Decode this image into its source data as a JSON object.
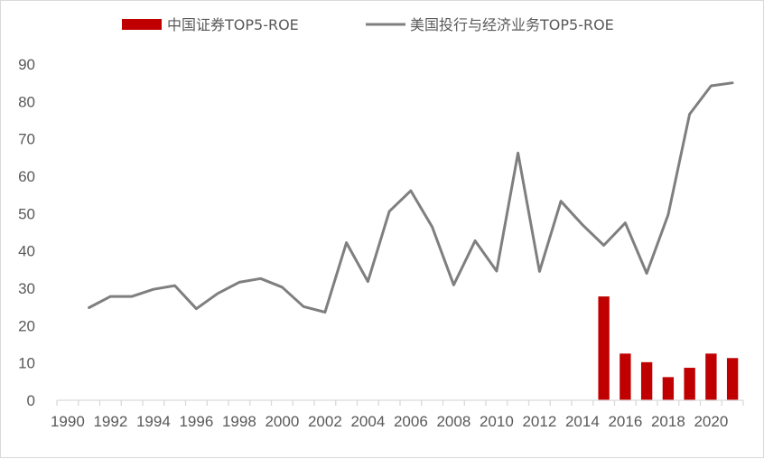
{
  "chart_data": {
    "type": "bar+line",
    "title": "",
    "xlabel": "",
    "ylabel": "",
    "ylim": [
      0,
      90
    ],
    "yticks": [
      "0",
      "10",
      "20",
      "30",
      "40",
      "50",
      "60",
      "70",
      "80",
      "90"
    ],
    "xlim": [
      1990,
      2021
    ],
    "xticks": [
      "1990",
      "1992",
      "1994",
      "1996",
      "1998",
      "2000",
      "2002",
      "2004",
      "2006",
      "2008",
      "2010",
      "2012",
      "2014",
      "2016",
      "2018",
      "2020"
    ],
    "grid": false,
    "legend_position": "top",
    "series": [
      {
        "name": "中国证券TOP5-ROE",
        "kind": "bar",
        "color": "#c00000",
        "x": [
          2015,
          2016,
          2017,
          2018,
          2019,
          2020,
          2021
        ],
        "values": [
          27.8,
          12.5,
          10.2,
          6.2,
          8.7,
          12.5,
          11.3
        ]
      },
      {
        "name": "美国投行与经济业务TOP5-ROE",
        "kind": "line",
        "color": "#7f7f7f",
        "x": [
          1991,
          1992,
          1993,
          1994,
          1995,
          1996,
          1997,
          1998,
          1999,
          2000,
          2001,
          2002,
          2003,
          2004,
          2005,
          2006,
          2007,
          2008,
          2009,
          2010,
          2011,
          2012,
          2013,
          2014,
          2015,
          2016,
          2017,
          2018,
          2019,
          2020,
          2021
        ],
        "values": [
          24.8,
          27.8,
          27.8,
          29.7,
          30.7,
          24.5,
          28.6,
          31.6,
          32.6,
          30.3,
          25.1,
          23.6,
          42.2,
          31.8,
          50.6,
          56.1,
          46.4,
          30.9,
          42.7,
          34.6,
          66.2,
          34.5,
          53.3,
          47.0,
          41.5,
          47.5,
          34.0,
          49.7,
          76.6,
          84.2,
          85.0
        ]
      }
    ]
  }
}
